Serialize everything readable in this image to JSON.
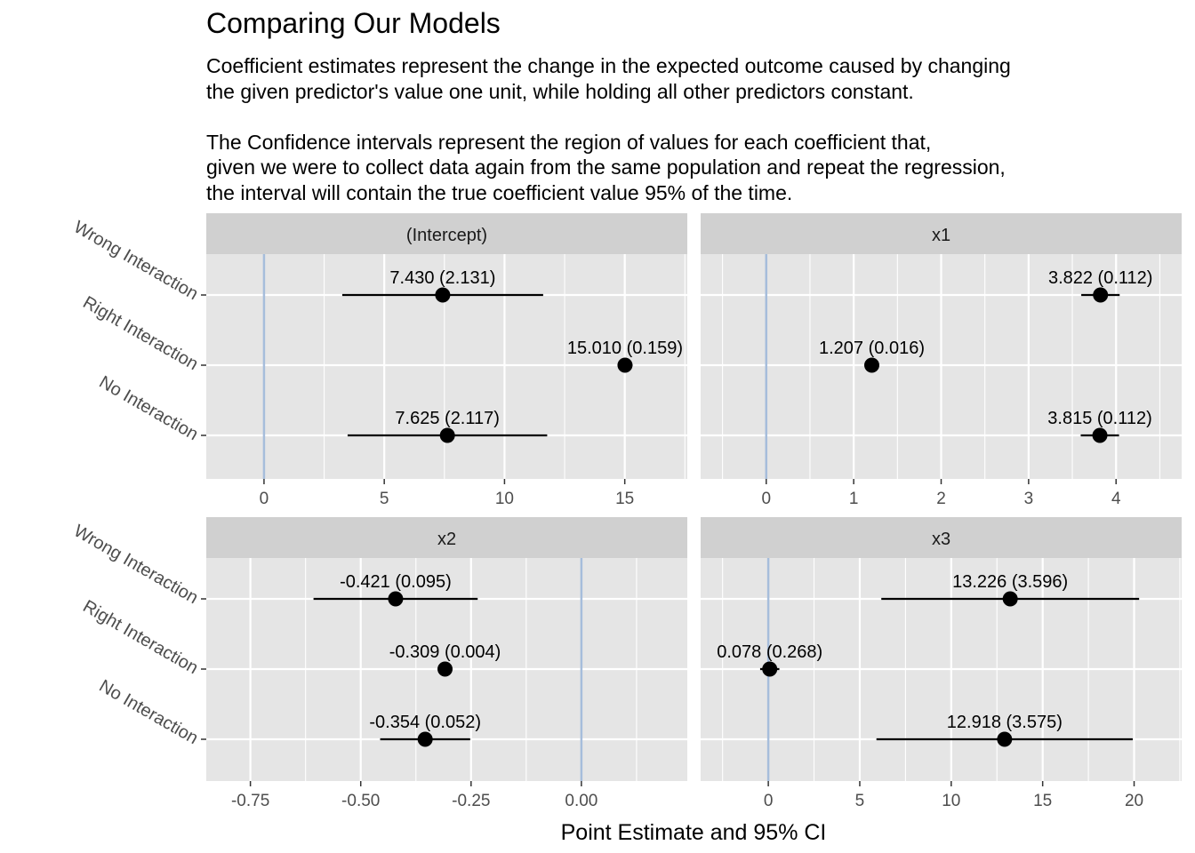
{
  "title": "Comparing Our Models",
  "subtitle_lines": [
    "Coefficient estimates represent the change in the expected outcome caused by changing",
    "the given predictor's value one unit, while holding all other predictors constant.",
    "",
    "The Confidence intervals represent the region of values for each coefficient that,",
    "given we were to collect data again from the same population and repeat the regression,",
    "the interval will contain the true coefficient value 95% of the time."
  ],
  "colors": {
    "panel_background": "#e5e5e5",
    "strip_background": "#d0d0d0",
    "grid": "#ffffff",
    "zero_line": "#a6bddb",
    "points": "#000000",
    "axis_text": "#4d4d4d"
  },
  "chart_data": {
    "type": "scatter",
    "subtype": "coefficient dot-and-whisker plot, faceted 2x2, free x scales",
    "xlabel": "Point Estimate and 95% CI",
    "ylabel": "",
    "models": [
      "Wrong Interaction",
      "Right Interaction",
      "No Interaction"
    ],
    "reference_line_x": 0,
    "grid": true,
    "facets": [
      {
        "title": "(Intercept)",
        "xlim": [
          -2.4,
          17.6
        ],
        "xticks": [
          0,
          5,
          10,
          15
        ],
        "tick_labels": [
          "0",
          "5",
          "10",
          "15"
        ],
        "points": [
          {
            "model": "Wrong Interaction",
            "estimate": 7.43,
            "lower": 3.254,
            "upper": 11.607,
            "label": "7.430 (2.131)"
          },
          {
            "model": "Right Interaction",
            "estimate": 15.01,
            "lower": 14.698,
            "upper": 15.322,
            "label": "15.010 (0.159)"
          },
          {
            "model": "No Interaction",
            "estimate": 7.625,
            "lower": 3.476,
            "upper": 11.774,
            "label": "7.625 (2.117)"
          }
        ]
      },
      {
        "title": "x1",
        "xlim": [
          -0.75,
          4.75
        ],
        "xticks": [
          0,
          1,
          2,
          3,
          4
        ],
        "tick_labels": [
          "0",
          "1",
          "2",
          "3",
          "4"
        ],
        "points": [
          {
            "model": "Wrong Interaction",
            "estimate": 3.822,
            "lower": 3.602,
            "upper": 4.041,
            "label": "3.822 (0.112)"
          },
          {
            "model": "Right Interaction",
            "estimate": 1.207,
            "lower": 1.176,
            "upper": 1.238,
            "label": "1.207 (0.016)"
          },
          {
            "model": "No Interaction",
            "estimate": 3.815,
            "lower": 3.596,
            "upper": 4.034,
            "label": "3.815 (0.112)"
          }
        ]
      },
      {
        "title": "x2",
        "xlim": [
          -0.85,
          0.24
        ],
        "xticks": [
          -0.75,
          -0.5,
          -0.25,
          0
        ],
        "tick_labels": [
          "-0.75",
          "-0.50",
          "-0.25",
          "0.00"
        ],
        "points": [
          {
            "model": "Wrong Interaction",
            "estimate": -0.421,
            "lower": -0.607,
            "upper": -0.235,
            "label": "-0.421 (0.095)"
          },
          {
            "model": "Right Interaction",
            "estimate": -0.309,
            "lower": -0.317,
            "upper": -0.301,
            "label": "-0.309 (0.004)"
          },
          {
            "model": "No Interaction",
            "estimate": -0.354,
            "lower": -0.456,
            "upper": -0.252,
            "label": "-0.354 (0.052)"
          }
        ]
      },
      {
        "title": "x3",
        "xlim": [
          -3.7,
          22.6
        ],
        "xticks": [
          0,
          5,
          10,
          15,
          20
        ],
        "tick_labels": [
          "0",
          "5",
          "10",
          "15",
          "20"
        ],
        "points": [
          {
            "model": "Wrong Interaction",
            "estimate": 13.226,
            "lower": 6.178,
            "upper": 20.274,
            "label": "13.226 (3.596)"
          },
          {
            "model": "Right Interaction",
            "estimate": 0.078,
            "lower": -0.447,
            "upper": 0.603,
            "label": "0.078 (0.268)"
          },
          {
            "model": "No Interaction",
            "estimate": 12.918,
            "lower": 5.911,
            "upper": 19.925,
            "label": "12.918 (3.575)"
          }
        ]
      }
    ]
  }
}
